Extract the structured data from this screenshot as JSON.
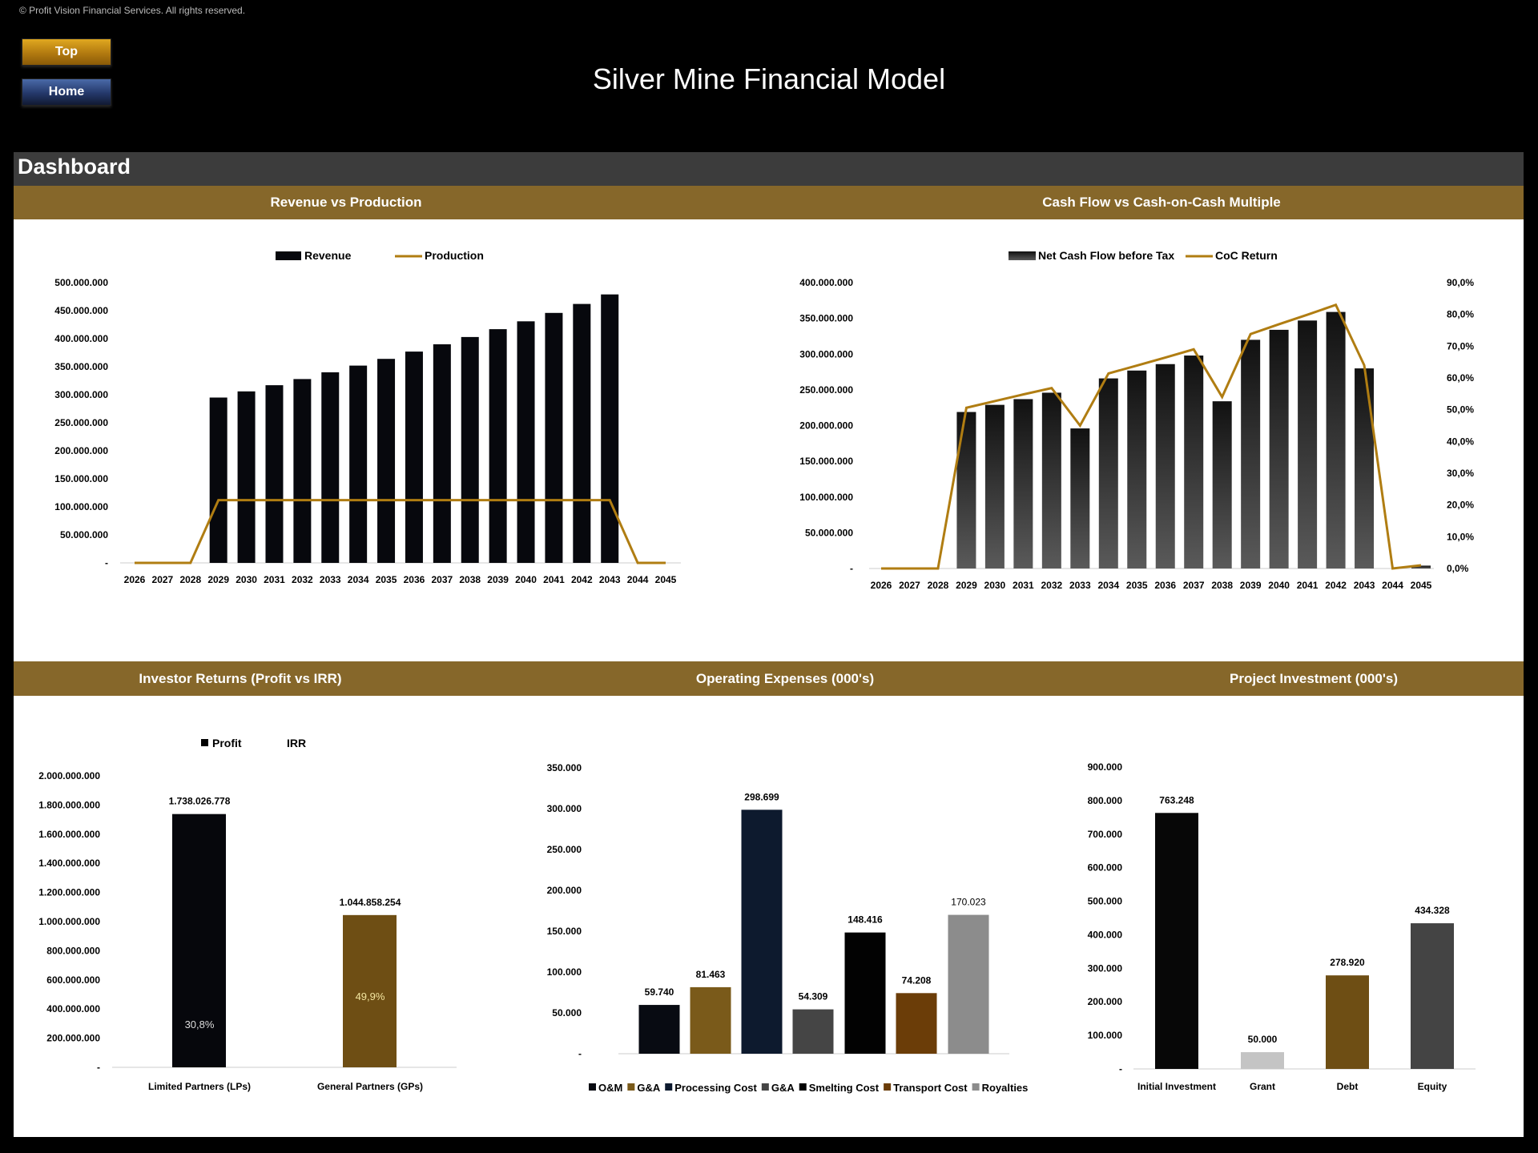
{
  "copyright": "© Profit Vision Financial Services. All rights reserved.",
  "nav": {
    "top_label": "Top",
    "home_label": "Home"
  },
  "title": "Silver Mine Financial Model",
  "dashboard_label": "Dashboard",
  "sections": {
    "revenue_vs_production": "Revenue vs Production",
    "cash_flow_vs_coc": "Cash Flow vs Cash-on-Cash Multiple",
    "investor_returns": "Investor Returns (Profit vs IRR)",
    "operating_expenses": "Operating Expenses (000's)",
    "project_investment": "Project Investment (000's)"
  },
  "colors": {
    "gold": "#86672a",
    "line_gold": "#b07d12",
    "dark_bar": "#0a0a0f"
  },
  "chart_data": [
    {
      "id": "revenue",
      "type": "bar+line",
      "categories": [
        "2026",
        "2027",
        "2028",
        "2029",
        "2030",
        "2031",
        "2032",
        "2033",
        "2034",
        "2035",
        "2036",
        "2037",
        "2038",
        "2039",
        "2040",
        "2041",
        "2042",
        "2043",
        "2044",
        "2045"
      ],
      "series": [
        {
          "name": "Revenue",
          "type": "bar",
          "values": [
            0,
            0,
            0,
            295000000,
            306000000,
            317000000,
            328000000,
            340000000,
            352000000,
            364000000,
            377000000,
            390000000,
            403000000,
            417000000,
            431000000,
            446000000,
            462000000,
            479000000,
            0,
            0
          ]
        },
        {
          "name": "Production",
          "type": "line",
          "values": [
            0,
            0,
            0,
            1,
            1,
            1,
            1,
            1,
            1,
            1,
            1,
            1,
            1,
            1,
            1,
            1,
            1,
            1,
            0,
            0
          ]
        }
      ],
      "yticks": [
        "-",
        "50.000.000",
        "100.000.000",
        "150.000.000",
        "200.000.000",
        "250.000.000",
        "300.000.000",
        "350.000.000",
        "400.000.000",
        "450.000.000",
        "500.000.000"
      ],
      "ylim": [
        0,
        500000000
      ],
      "legend": "top"
    },
    {
      "id": "cashflow",
      "type": "bar+line",
      "categories": [
        "2026",
        "2027",
        "2028",
        "2029",
        "2030",
        "2031",
        "2032",
        "2033",
        "2034",
        "2035",
        "2036",
        "2037",
        "2038",
        "2039",
        "2040",
        "2041",
        "2042",
        "2043",
        "2044",
        "2045"
      ],
      "series": [
        {
          "name": "Net Cash Flow before Tax",
          "type": "bar",
          "values": [
            0,
            0,
            0,
            219000000,
            229000000,
            237000000,
            246000000,
            196000000,
            266000000,
            277000000,
            286000000,
            298000000,
            234000000,
            320000000,
            334000000,
            347000000,
            359000000,
            280000000,
            0,
            4000000
          ]
        },
        {
          "name": "CoC Return",
          "type": "line",
          "axis": "right",
          "values": [
            0,
            0,
            0,
            50.6,
            52.7,
            54.8,
            56.8,
            45.0,
            61.4,
            63.9,
            66.4,
            69.0,
            54.0,
            73.8,
            76.9,
            79.9,
            83.0,
            64.0,
            0,
            1.0
          ]
        }
      ],
      "yticks": [
        "-",
        "50.000.000",
        "100.000.000",
        "150.000.000",
        "200.000.000",
        "250.000.000",
        "300.000.000",
        "350.000.000",
        "400.000.000"
      ],
      "ylim": [
        0,
        400000000
      ],
      "y2ticks": [
        "0,0%",
        "10,0%",
        "20,0%",
        "30,0%",
        "40,0%",
        "50,0%",
        "60,0%",
        "70,0%",
        "80,0%",
        "90,0%"
      ],
      "y2lim": [
        0,
        90
      ],
      "legend": "top"
    },
    {
      "id": "investor",
      "type": "bar",
      "categories": [
        "Limited Partners (LPs)",
        "General Partners (GPs)"
      ],
      "series": [
        {
          "name": "Profit",
          "values": [
            1738026778,
            1044858254
          ],
          "labels": [
            "1.738.026.778",
            "1.044.858.254"
          ],
          "colors": [
            "#06070c",
            "#6e4e14"
          ]
        },
        {
          "name": "IRR",
          "values": [
            30.8,
            49.9
          ],
          "labels": [
            "30,8%",
            "49,9%"
          ]
        }
      ],
      "yticks": [
        "-",
        "200.000.000",
        "400.000.000",
        "600.000.000",
        "800.000.000",
        "1.000.000.000",
        "1.200.000.000",
        "1.400.000.000",
        "1.600.000.000",
        "1.800.000.000",
        "2.000.000.000"
      ],
      "ylim": [
        0,
        2000000000
      ],
      "legend": "top"
    },
    {
      "id": "opex",
      "type": "bar",
      "categories": [
        "O&M",
        "G&A",
        "Processing Cost",
        "G&A",
        "Smelting Cost",
        "Transport Cost",
        "Royalties"
      ],
      "values": [
        59740,
        81463,
        298699,
        54309,
        148416,
        74208,
        170023
      ],
      "labels": [
        "59.740",
        "81.463",
        "298.699",
        "54.309",
        "148.416",
        "74.208",
        "170.023"
      ],
      "colors": [
        "#080b12",
        "#7a5a1a",
        "#0d1a2e",
        "#454545",
        "#020202",
        "#6b3d08",
        "#8c8c8c"
      ],
      "yticks": [
        "-",
        "50.000",
        "100.000",
        "150.000",
        "200.000",
        "250.000",
        "300.000",
        "350.000"
      ],
      "ylim": [
        0,
        350000
      ],
      "legend": "bottom"
    },
    {
      "id": "investment",
      "type": "bar",
      "categories": [
        "Initial Investment",
        "Grant",
        "Debt",
        "Equity"
      ],
      "values": [
        763248,
        50000,
        278920,
        434328
      ],
      "labels": [
        "763.248",
        "50.000",
        "278.920",
        "434.328"
      ],
      "colors": [
        "#070707",
        "#c4c4c4",
        "#6e4e14",
        "#444444"
      ],
      "yticks": [
        "-",
        "100.000",
        "200.000",
        "300.000",
        "400.000",
        "500.000",
        "600.000",
        "700.000",
        "800.000",
        "900.000"
      ],
      "ylim": [
        0,
        900000
      ]
    }
  ]
}
